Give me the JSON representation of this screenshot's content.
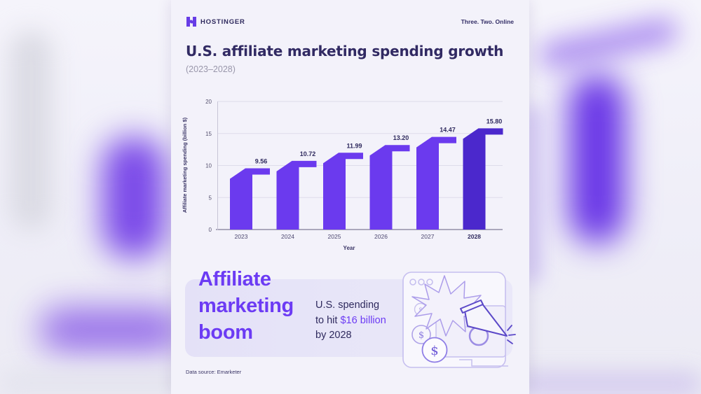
{
  "brand": {
    "logo_text": "HOSTINGER",
    "tagline": "Three. Two. Online",
    "logo_color": "#673DE6"
  },
  "header": {
    "title": "U.S. affiliate marketing spending growth",
    "subtitle": "(2023–2028)"
  },
  "chart_data": {
    "type": "bar",
    "categories": [
      "2023",
      "2024",
      "2025",
      "2026",
      "2027",
      "2028"
    ],
    "values": [
      9.56,
      10.72,
      11.99,
      13.2,
      14.47,
      15.8
    ],
    "value_labels": [
      "9.56",
      "10.72",
      "11.99",
      "13.20",
      "14.47",
      "15.80"
    ],
    "xlabel": "Year",
    "ylabel": "Affiliate marketing spending (billion $)",
    "ylim": [
      0,
      20
    ],
    "yticks": [
      0,
      5,
      10,
      15,
      20
    ],
    "grid": true,
    "legend": "none",
    "highlight_index": 5,
    "bar_color": "#6B3AEE",
    "highlight_bar_color": "#4B28CC",
    "grid_color": "#DEDCEA",
    "axis_color": "#ABA8BC",
    "label_color": "#2F2A5E"
  },
  "callout": {
    "heading": "Affiliate\nmarketing\nboom",
    "line1": "U.S. spending",
    "line2_prefix": "to hit ",
    "line2_highlight": "$16 billion",
    "line3": "by 2028",
    "accent_color": "#6C3BF4"
  },
  "footer": {
    "source": "Data source: Emarketer"
  }
}
